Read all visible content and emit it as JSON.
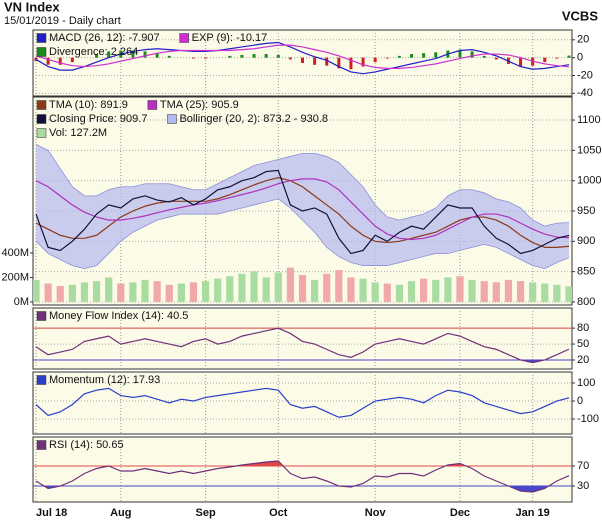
{
  "header": {
    "title": "VN Index",
    "subtitle": "15/01/2019 - Daily chart",
    "brand": "VCBS"
  },
  "chart_data": [
    {
      "type": "line",
      "ylim": [
        -43,
        31
      ],
      "yticks": [
        20,
        0,
        -20,
        -40
      ],
      "grid": true,
      "series": [
        {
          "name": "MACD (26, 12): -7.907",
          "color": "#2020c8",
          "values": [
            -2,
            -10,
            -14,
            -14,
            -10,
            -5,
            0,
            4,
            7,
            9,
            10,
            9,
            8,
            7,
            7,
            8,
            10,
            12,
            14,
            16,
            17,
            12,
            6,
            1,
            -3,
            -10,
            -16,
            -18,
            -16,
            -13,
            -10,
            -7,
            -4,
            -1,
            4,
            8,
            9,
            6,
            2,
            -4,
            -10,
            -13,
            -12,
            -10,
            -7.907
          ]
        },
        {
          "name": "EXP (9): -10.17",
          "color": "#d030d0",
          "values": [
            2,
            -2,
            -6,
            -9,
            -10,
            -9,
            -7,
            -4,
            -1,
            2,
            5,
            7,
            8,
            8,
            8,
            8,
            8,
            9,
            10,
            12,
            14,
            14,
            12,
            9,
            6,
            2,
            -3,
            -8,
            -11,
            -12,
            -12,
            -11,
            -9,
            -7,
            -4,
            -1,
            2,
            4,
            4,
            3,
            0,
            -4,
            -7,
            -9,
            -10.17
          ]
        },
        {
          "name": "Divergence: 2.264",
          "type": "histogram",
          "color": "#1a8a1a",
          "down_color": "#d02020",
          "values": [
            -4,
            -8,
            -8,
            -5,
            0,
            4,
            7,
            8,
            8,
            7,
            5,
            2,
            0,
            -1,
            -1,
            0,
            2,
            3,
            4,
            4,
            3,
            -2,
            -6,
            -8,
            -9,
            -12,
            -13,
            -10,
            -5,
            -1,
            2,
            4,
            5,
            6,
            8,
            9,
            7,
            2,
            -2,
            -7,
            -10,
            -9,
            -5,
            -1,
            2.264
          ]
        }
      ]
    },
    {
      "type": "line",
      "ylim": [
        795,
        1138
      ],
      "yticks": [
        1100,
        1050,
        1000,
        950,
        900,
        850,
        800
      ],
      "y2lim": [
        -25,
        1673
      ],
      "y2ticks": [
        {
          "value": 400,
          "label": "400M"
        },
        {
          "value": 200,
          "label": "200M"
        },
        {
          "value": 0,
          "label": "0M"
        }
      ],
      "grid": true,
      "series": [
        {
          "name": "TMA (10): 891.9",
          "color": "#8b3a1a",
          "values": [
            930,
            920,
            910,
            905,
            905,
            910,
            925,
            940,
            950,
            958,
            963,
            966,
            966,
            966,
            966,
            970,
            977,
            985,
            993,
            1000,
            1005,
            1000,
            990,
            975,
            960,
            945,
            925,
            910,
            900,
            898,
            900,
            905,
            910,
            915,
            925,
            935,
            940,
            940,
            935,
            925,
            910,
            898,
            890,
            890,
            891.9
          ]
        },
        {
          "name": "TMA (25): 905.9",
          "color": "#b030c0",
          "values": [
            1000,
            990,
            975,
            960,
            948,
            940,
            935,
            935,
            938,
            942,
            947,
            952,
            956,
            960,
            963,
            967,
            972,
            977,
            982,
            988,
            995,
            1000,
            1003,
            1003,
            998,
            985,
            965,
            945,
            925,
            912,
            905,
            903,
            905,
            910,
            920,
            930,
            940,
            945,
            945,
            940,
            930,
            920,
            912,
            907,
            905.9
          ]
        },
        {
          "name": "Closing Price: 909.7",
          "color": "#10103a",
          "values": [
            945,
            890,
            885,
            900,
            920,
            945,
            960,
            955,
            970,
            975,
            968,
            965,
            972,
            960,
            970,
            985,
            990,
            1000,
            1005,
            1015,
            1017,
            960,
            950,
            955,
            945,
            905,
            880,
            885,
            910,
            900,
            915,
            925,
            920,
            940,
            960,
            955,
            955,
            925,
            905,
            895,
            880,
            885,
            895,
            905,
            909.7
          ]
        },
        {
          "name": "Bollinger (20, 2): 873.2 - 930.8",
          "type": "band",
          "color": "#b4b8f0",
          "upper": [
            1060,
            1050,
            1020,
            990,
            975,
            975,
            985,
            990,
            990,
            995,
            995,
            995,
            990,
            985,
            985,
            995,
            1005,
            1015,
            1025,
            1030,
            1035,
            1040,
            1045,
            1045,
            1040,
            1030,
            1010,
            990,
            960,
            940,
            935,
            940,
            945,
            955,
            975,
            985,
            985,
            980,
            970,
            965,
            955,
            935,
            925,
            930,
            930.8
          ],
          "lower": [
            900,
            880,
            870,
            860,
            855,
            860,
            880,
            900,
            915,
            925,
            935,
            940,
            945,
            945,
            945,
            945,
            950,
            955,
            960,
            965,
            970,
            955,
            935,
            915,
            890,
            875,
            865,
            860,
            860,
            860,
            865,
            870,
            875,
            880,
            880,
            885,
            890,
            895,
            890,
            880,
            870,
            860,
            855,
            865,
            873.2
          ]
        },
        {
          "name": "Vol: 127.2M",
          "type": "bar",
          "axis": "y2",
          "color": "#a8dca0",
          "down_color": "#f0a8a8",
          "values": [
            180,
            150,
            130,
            140,
            160,
            170,
            200,
            150,
            160,
            180,
            170,
            140,
            150,
            160,
            170,
            190,
            210,
            230,
            250,
            200,
            240,
            280,
            220,
            180,
            230,
            260,
            200,
            190,
            160,
            150,
            140,
            170,
            190,
            180,
            200,
            210,
            180,
            170,
            160,
            180,
            170,
            160,
            150,
            140,
            127.2
          ]
        }
      ]
    },
    {
      "type": "line",
      "ylim": [
        3,
        118
      ],
      "yticks": [
        80,
        50,
        20
      ],
      "grid": true,
      "overbought_color": "#e04848",
      "oversold_color": "#4848c8",
      "series": [
        {
          "name": "Money Flow Index (14): 40.5",
          "color": "#70307a",
          "values": [
            45,
            30,
            35,
            40,
            55,
            60,
            65,
            50,
            55,
            60,
            55,
            50,
            45,
            55,
            60,
            50,
            55,
            65,
            70,
            75,
            80,
            70,
            55,
            50,
            40,
            30,
            25,
            35,
            50,
            55,
            60,
            55,
            50,
            60,
            70,
            65,
            55,
            45,
            40,
            30,
            20,
            15,
            20,
            30,
            40.5
          ]
        }
      ]
    },
    {
      "type": "line",
      "ylim": [
        -183,
        161
      ],
      "yticks": [
        100,
        0,
        -100
      ],
      "grid": true,
      "series": [
        {
          "name": "Momentum (12): 17.93",
          "color": "#2a3ec8",
          "values": [
            -20,
            -80,
            -60,
            -20,
            40,
            60,
            70,
            30,
            20,
            30,
            10,
            -10,
            10,
            0,
            20,
            30,
            40,
            50,
            60,
            70,
            60,
            -20,
            -40,
            -30,
            -60,
            -90,
            -80,
            -40,
            0,
            10,
            20,
            10,
            -10,
            30,
            60,
            50,
            30,
            -10,
            -30,
            -50,
            -70,
            -60,
            -30,
            0,
            17.93
          ]
        }
      ]
    },
    {
      "type": "line",
      "ylim": [
        -2,
        128
      ],
      "yticks": [
        70,
        30
      ],
      "grid": true,
      "overbought_color": "#e04848",
      "oversold_color": "#4848c8",
      "categories": [
        "Jul 18",
        null,
        null,
        null,
        null,
        null,
        null,
        "Aug",
        null,
        null,
        null,
        null,
        null,
        null,
        "Sep",
        null,
        null,
        null,
        null,
        null,
        "Oct",
        null,
        null,
        null,
        null,
        null,
        null,
        null,
        "Nov",
        null,
        null,
        null,
        null,
        null,
        null,
        "Dec",
        null,
        null,
        null,
        null,
        null,
        "Jan 19",
        null,
        null,
        null
      ],
      "series": [
        {
          "name": "RSI (14): 50.65",
          "color": "#70307a",
          "values": [
            40,
            25,
            30,
            40,
            55,
            65,
            70,
            60,
            60,
            65,
            60,
            55,
            60,
            55,
            60,
            65,
            68,
            72,
            75,
            78,
            80,
            55,
            45,
            48,
            40,
            30,
            28,
            35,
            50,
            48,
            55,
            55,
            50,
            62,
            72,
            75,
            65,
            50,
            40,
            30,
            20,
            18,
            25,
            40,
            50.65
          ]
        }
      ]
    }
  ]
}
